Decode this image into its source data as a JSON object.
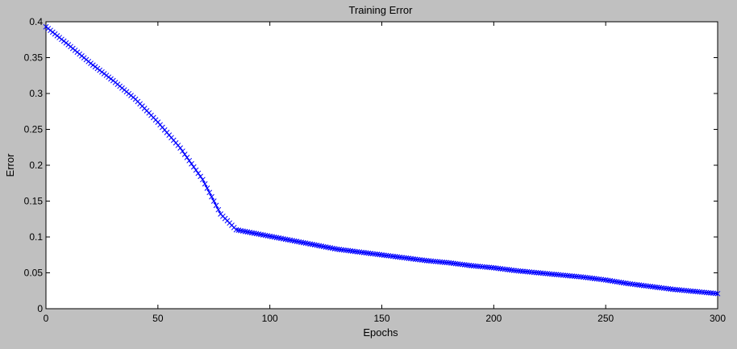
{
  "chart_data": {
    "type": "line",
    "title": "Training Error",
    "xlabel": "Epochs",
    "ylabel": "Error",
    "xlim": [
      0,
      300
    ],
    "ylim": [
      0,
      0.4
    ],
    "xticks": [
      "0",
      "50",
      "100",
      "150",
      "200",
      "250",
      "300"
    ],
    "yticks": [
      "0",
      "0.05",
      "0.1",
      "0.15",
      "0.2",
      "0.25",
      "0.3",
      "0.35",
      "0.4"
    ],
    "grid": false,
    "series": [
      {
        "color": "#0000ff",
        "marker": "x",
        "x": [
          0,
          10,
          20,
          30,
          40,
          50,
          60,
          70,
          78,
          85,
          90,
          100,
          110,
          120,
          130,
          140,
          150,
          160,
          170,
          180,
          190,
          200,
          210,
          220,
          230,
          240,
          250,
          260,
          270,
          280,
          290,
          300
        ],
        "y": [
          0.393,
          0.368,
          0.342,
          0.318,
          0.292,
          0.26,
          0.224,
          0.18,
          0.132,
          0.11,
          0.107,
          0.101,
          0.095,
          0.089,
          0.083,
          0.079,
          0.075,
          0.071,
          0.067,
          0.064,
          0.06,
          0.057,
          0.053,
          0.05,
          0.047,
          0.044,
          0.04,
          0.035,
          0.031,
          0.027,
          0.024,
          0.021
        ]
      }
    ]
  }
}
